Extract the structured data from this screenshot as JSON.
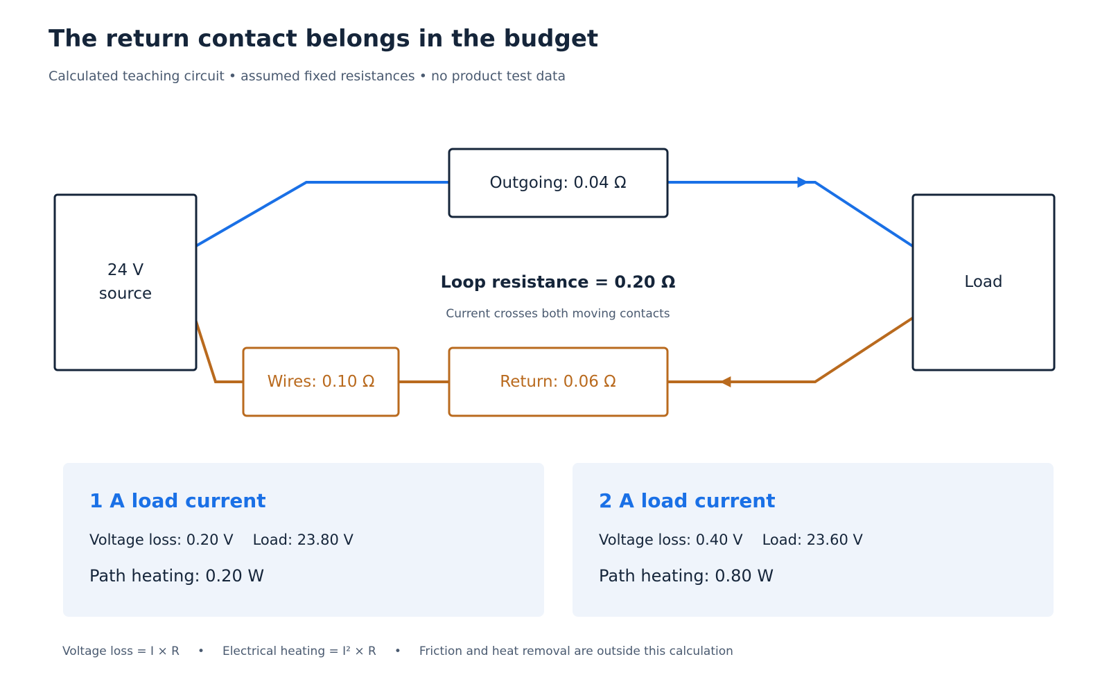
{
  "title": "The return contact belongs in the budget",
  "subtitle": "Calculated teaching circuit • assumed fixed resistances • no product test data",
  "diagram": {
    "source_label_line1": "24 V",
    "source_label_line2": "source",
    "load_label": "Load",
    "outgoing_label": "Outgoing: 0.04 Ω",
    "wires_label": "Wires: 0.10 Ω",
    "return_label": "Return: 0.06 Ω",
    "loop_label": "Loop resistance = 0.20 Ω",
    "loop_note": "Current crosses both moving contacts",
    "colors": {
      "outgoing": "#1a70e6",
      "return": "#b96a1e",
      "box_border": "#15253a",
      "text": "#15253a"
    }
  },
  "cards": [
    {
      "heading": "1 A load current",
      "voltage_loss": "Voltage loss: 0.20 V",
      "load_voltage": "Load: 23.80 V",
      "heating": "Path heating: 0.20 W"
    },
    {
      "heading": "2 A load current",
      "voltage_loss": "Voltage loss: 0.40 V",
      "load_voltage": "Load: 23.60 V",
      "heating": "Path heating: 0.80 W"
    }
  ],
  "footer": {
    "formula_voltage": "Voltage loss = I × R",
    "formula_heating": "Electrical heating = I² × R",
    "note": "Friction and heat removal are outside this calculation",
    "separator": "•"
  }
}
